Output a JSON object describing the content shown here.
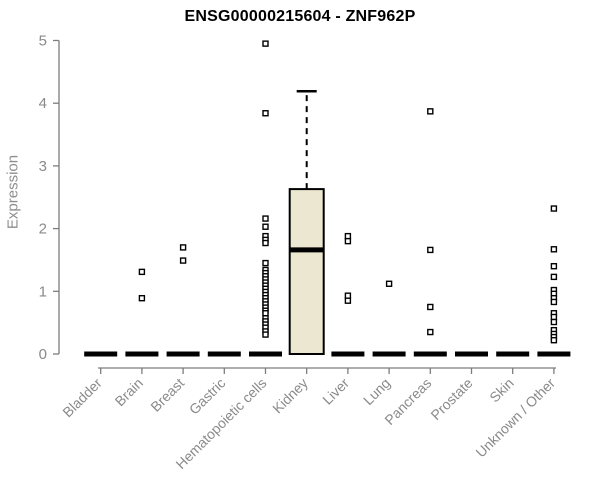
{
  "chart_data": {
    "type": "boxplot",
    "title": "ENSG00000215604 - ZNF962P",
    "ylabel": "Expression",
    "xlabel": "",
    "ylim": [
      0,
      5
    ],
    "yticks": [
      0,
      1,
      2,
      3,
      4,
      5
    ],
    "grid": false,
    "legend": false,
    "categories": [
      "Bladder",
      "Brain",
      "Breast",
      "Gastric",
      "Hematopoietic cells",
      "Kidney",
      "Liver",
      "Lung",
      "Pancreas",
      "Prostate",
      "Skin",
      "Unknown / Other"
    ],
    "boxes": [
      {
        "category": "Bladder",
        "median": 0,
        "q1": 0,
        "q3": 0,
        "whisker_low": 0,
        "whisker_high": 0,
        "outliers": []
      },
      {
        "category": "Brain",
        "median": 0,
        "q1": 0,
        "q3": 0,
        "whisker_low": 0,
        "whisker_high": 0,
        "outliers": [
          1.31,
          0.89
        ]
      },
      {
        "category": "Breast",
        "median": 0,
        "q1": 0,
        "q3": 0,
        "whisker_low": 0,
        "whisker_high": 0,
        "outliers": [
          1.7,
          1.49
        ]
      },
      {
        "category": "Gastric",
        "median": 0,
        "q1": 0,
        "q3": 0,
        "whisker_low": 0,
        "whisker_high": 0,
        "outliers": []
      },
      {
        "category": "Hematopoietic cells",
        "median": 0,
        "q1": 0,
        "q3": 0,
        "whisker_low": 0,
        "whisker_high": 0,
        "outliers": [
          4.95,
          3.84,
          2.16,
          2.03,
          1.88,
          1.82,
          1.77,
          1.45,
          1.34,
          1.29,
          1.24,
          1.19,
          1.14,
          1.09,
          1.04,
          0.99,
          0.94,
          0.89,
          0.84,
          0.79,
          0.74,
          0.69,
          0.65,
          0.57,
          0.52,
          0.47,
          0.42,
          0.36,
          0.31
        ]
      },
      {
        "category": "Kidney",
        "median": 1.66,
        "q1": 0,
        "q3": 2.63,
        "whisker_low": 0,
        "whisker_high": 4.19,
        "outliers": []
      },
      {
        "category": "Liver",
        "median": 0,
        "q1": 0,
        "q3": 0,
        "whisker_low": 0,
        "whisker_high": 0,
        "outliers": [
          1.88,
          1.8,
          0.93,
          0.85
        ]
      },
      {
        "category": "Lung",
        "median": 0,
        "q1": 0,
        "q3": 0,
        "whisker_low": 0,
        "whisker_high": 0,
        "outliers": [
          1.12
        ]
      },
      {
        "category": "Pancreas",
        "median": 0,
        "q1": 0,
        "q3": 0,
        "whisker_low": 0,
        "whisker_high": 0,
        "outliers": [
          3.87,
          1.66,
          0.75,
          0.35
        ]
      },
      {
        "category": "Prostate",
        "median": 0,
        "q1": 0,
        "q3": 0,
        "whisker_low": 0,
        "whisker_high": 0,
        "outliers": []
      },
      {
        "category": "Skin",
        "median": 0,
        "q1": 0,
        "q3": 0,
        "whisker_low": 0,
        "whisker_high": 0,
        "outliers": []
      },
      {
        "category": "Unknown / Other",
        "median": 0,
        "q1": 0,
        "q3": 0,
        "whisker_low": 0,
        "whisker_high": 0,
        "outliers": [
          2.32,
          1.67,
          1.4,
          1.23,
          1.02,
          0.96,
          0.89,
          0.83,
          0.65,
          0.59,
          0.51,
          0.38,
          0.32,
          0.27,
          0.22
        ]
      }
    ],
    "colors": {
      "box_fill": "#ece7d1",
      "box_stroke": "#000000",
      "median": "#000000",
      "outlier_stroke": "#000000",
      "outlier_fill": "#ffffff",
      "axis": "#7d7d7d",
      "tick_label": "#8a8a8a",
      "category_label": "#8a8a8a",
      "title_color": "#000000",
      "ylabel_color": "#8e8e8e"
    }
  }
}
